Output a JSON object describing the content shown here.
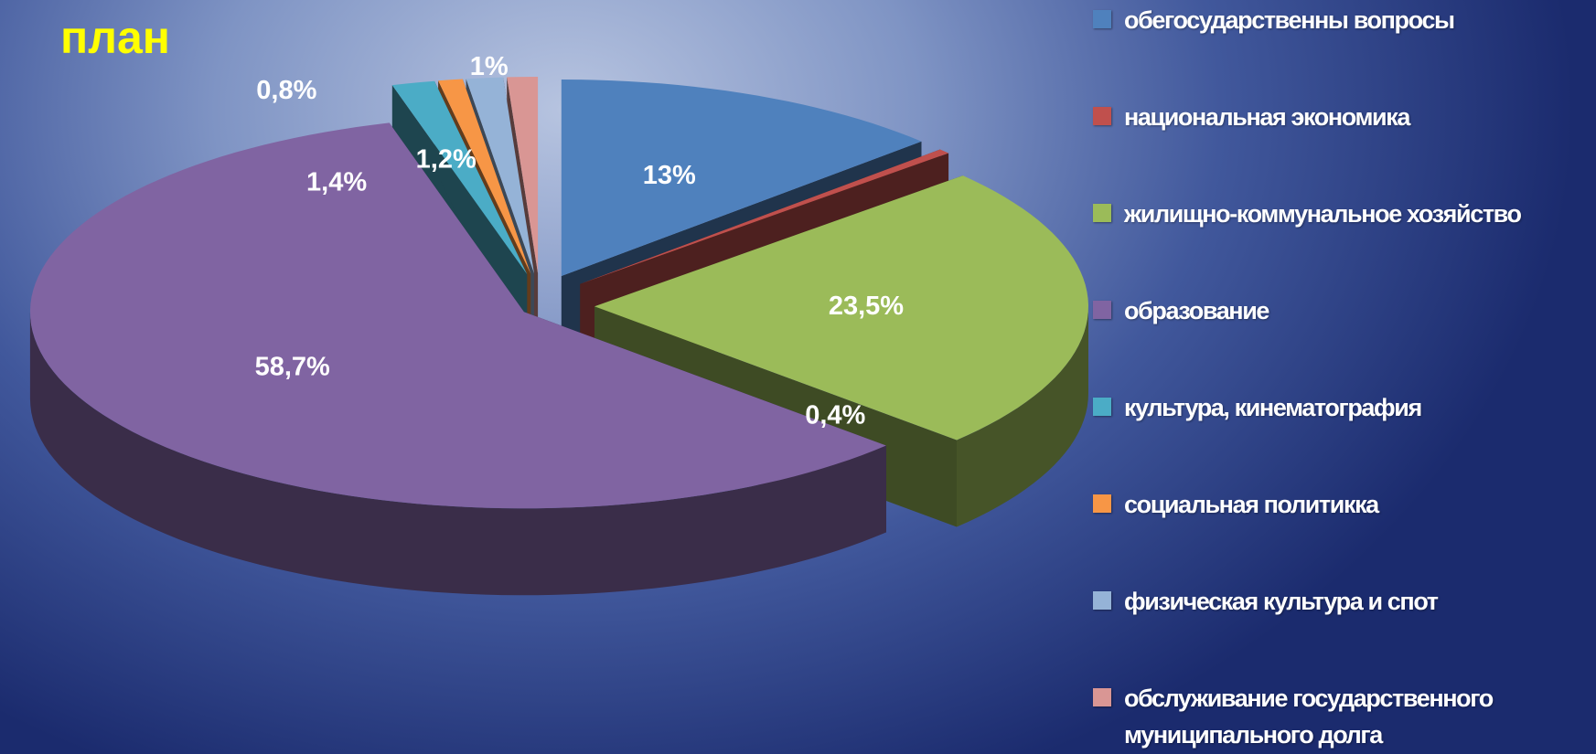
{
  "chart_data": {
    "type": "pie3d",
    "title": "план",
    "categories": [
      "обегосударственны вопросы",
      "национальная экономика",
      "жилищно-коммунальное хозяйство",
      "образование",
      "культура, кинематография",
      "социальная политикка",
      "физическая культура и спот",
      "обслуживание государственного муниципального долга"
    ],
    "values": [
      13,
      0.4,
      23.5,
      58.7,
      1.4,
      0.8,
      1.2,
      1
    ],
    "value_labels": [
      "13%",
      "0,4%",
      "23,5%",
      "58,7%",
      "1,4%",
      "0,8%",
      "1,2%",
      "1%"
    ],
    "colors": [
      "#4f81bd",
      "#c0504d",
      "#9bbb59",
      "#8064a2",
      "#4bacc6",
      "#f79646",
      "#95b3d7",
      "#d99694"
    ],
    "legend": "right"
  }
}
